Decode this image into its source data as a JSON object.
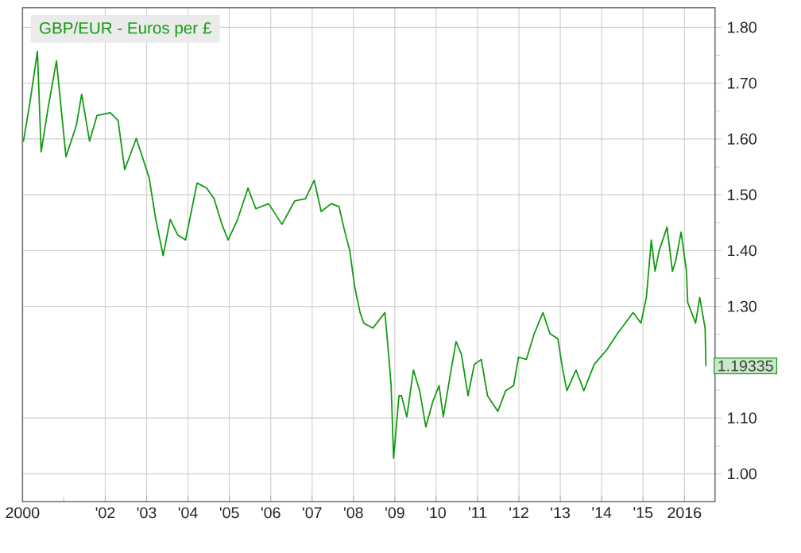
{
  "chart_data": {
    "type": "line",
    "x": [
      2000.02,
      2000.17,
      2000.36,
      2000.45,
      2000.61,
      2000.82,
      2001.05,
      2001.3,
      2001.43,
      2001.62,
      2001.8,
      2002.12,
      2002.31,
      2002.47,
      2002.75,
      2003.06,
      2003.22,
      2003.4,
      2003.57,
      2003.75,
      2003.94,
      2004.22,
      2004.45,
      2004.63,
      2004.82,
      2004.97,
      2005.2,
      2005.45,
      2005.64,
      2005.95,
      2006.27,
      2006.58,
      2006.84,
      2007.05,
      2007.22,
      2007.46,
      2007.65,
      2007.78,
      2007.91,
      2008.03,
      2008.16,
      2008.25,
      2008.47,
      2008.76,
      2008.85,
      2008.91,
      2008.97,
      2009.1,
      2009.16,
      2009.29,
      2009.45,
      2009.6,
      2009.75,
      2009.92,
      2010.07,
      2010.17,
      2010.36,
      2010.48,
      2010.61,
      2010.77,
      2010.92,
      2011.09,
      2011.24,
      2011.49,
      2011.68,
      2011.87,
      2011.99,
      2012.18,
      2012.37,
      2012.58,
      2012.75,
      2012.94,
      2013.06,
      2013.16,
      2013.38,
      2013.57,
      2013.82,
      2014.13,
      2014.38,
      2014.57,
      2014.76,
      2014.95,
      2015.08,
      2015.2,
      2015.29,
      2015.39,
      2015.58,
      2015.71,
      2015.79,
      2015.92,
      2016.05,
      2016.08,
      2016.27,
      2016.37,
      2016.5,
      2016.52
    ],
    "series": [
      {
        "name": "GBP/EUR - Euros per £",
        "color": "#109a10",
        "values": [
          1.595,
          1.661,
          1.757,
          1.577,
          1.652,
          1.74,
          1.568,
          1.624,
          1.68,
          1.596,
          1.642,
          1.647,
          1.633,
          1.545,
          1.601,
          1.531,
          1.456,
          1.391,
          1.456,
          1.428,
          1.419,
          1.521,
          1.512,
          1.493,
          1.447,
          1.419,
          1.456,
          1.512,
          1.475,
          1.484,
          1.447,
          1.489,
          1.493,
          1.526,
          1.47,
          1.484,
          1.479,
          1.437,
          1.4,
          1.335,
          1.289,
          1.27,
          1.261,
          1.289,
          1.214,
          1.158,
          1.028,
          1.14,
          1.14,
          1.102,
          1.186,
          1.149,
          1.084,
          1.13,
          1.158,
          1.102,
          1.186,
          1.237,
          1.214,
          1.14,
          1.196,
          1.205,
          1.14,
          1.112,
          1.149,
          1.158,
          1.209,
          1.205,
          1.251,
          1.289,
          1.251,
          1.242,
          1.186,
          1.149,
          1.186,
          1.149,
          1.196,
          1.223,
          1.251,
          1.27,
          1.289,
          1.27,
          1.316,
          1.419,
          1.363,
          1.4,
          1.442,
          1.363,
          1.382,
          1.433,
          1.363,
          1.307,
          1.27,
          1.316,
          1.261,
          1.193
        ]
      }
    ],
    "xlim": [
      2000,
      2016.74
    ],
    "xticks": [
      {
        "value": 2000,
        "label": "2000"
      },
      {
        "value": 2001,
        "label": null
      },
      {
        "value": 2002,
        "label": "'02"
      },
      {
        "value": 2003,
        "label": "'03"
      },
      {
        "value": 2004,
        "label": "'04"
      },
      {
        "value": 2005,
        "label": "'05"
      },
      {
        "value": 2006,
        "label": "'06"
      },
      {
        "value": 2007,
        "label": "'07"
      },
      {
        "value": 2008,
        "label": "'08"
      },
      {
        "value": 2009,
        "label": "'09"
      },
      {
        "value": 2010,
        "label": "'10"
      },
      {
        "value": 2011,
        "label": "'11"
      },
      {
        "value": 2012,
        "label": "'12"
      },
      {
        "value": 2013,
        "label": "'13"
      },
      {
        "value": 2014,
        "label": "'14"
      },
      {
        "value": 2015,
        "label": "'15"
      },
      {
        "value": 2016,
        "label": "2016"
      }
    ],
    "ylim": [
      0.95,
      1.835
    ],
    "yticks": [
      {
        "value": 1.0,
        "label": "1.00"
      },
      {
        "value": 1.05,
        "label": null
      },
      {
        "value": 1.1,
        "label": "1.10"
      },
      {
        "value": 1.15,
        "label": null
      },
      {
        "value": 1.2,
        "label": null
      },
      {
        "value": 1.25,
        "label": null
      },
      {
        "value": 1.3,
        "label": "1.30"
      },
      {
        "value": 1.35,
        "label": null
      },
      {
        "value": 1.4,
        "label": "1.40"
      },
      {
        "value": 1.45,
        "label": null
      },
      {
        "value": 1.5,
        "label": "1.50"
      },
      {
        "value": 1.55,
        "label": null
      },
      {
        "value": 1.6,
        "label": "1.60"
      },
      {
        "value": 1.65,
        "label": null
      },
      {
        "value": 1.7,
        "label": "1.70"
      },
      {
        "value": 1.75,
        "label": null
      },
      {
        "value": 1.8,
        "label": "1.80"
      }
    ],
    "annotations": [
      {
        "text": "1.19335",
        "x": 2016.52,
        "y": 1.19335
      }
    ],
    "grid": true,
    "legend": "top left",
    "marker": "none",
    "line_style": "solid"
  }
}
